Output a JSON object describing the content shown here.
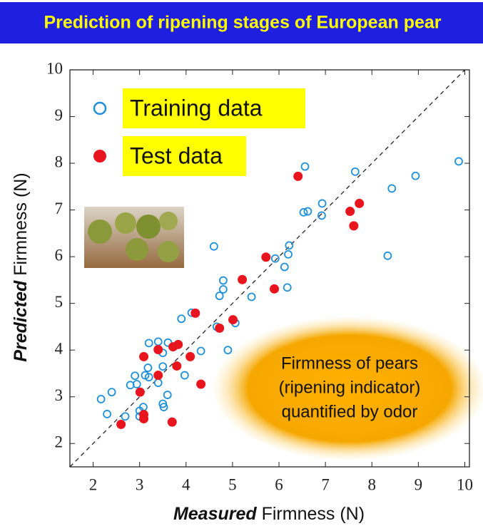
{
  "chart_data": {
    "type": "scatter",
    "title": "Prediction of ripening stages of European pear",
    "x_label_emphasis": "Measured",
    "x_label": "Firmness (N)",
    "y_label_emphasis": "Predicted",
    "y_label": "Firmness (N)",
    "annotation": [
      "Firmness of pears",
      "(ripening indicator)",
      "quantified by odor"
    ],
    "xlim": [
      1.5,
      10.1
    ],
    "ylim": [
      1.5,
      10
    ],
    "xticks": [
      2,
      3,
      4,
      5,
      6,
      7,
      8,
      9,
      10
    ],
    "yticks": [
      2,
      3,
      4,
      5,
      6,
      7,
      8,
      9,
      10
    ],
    "diagonal": true,
    "series": [
      {
        "name": "Training data",
        "color": "#1e90d8",
        "filled": false,
        "x": [
          2.17,
          2.4,
          2.3,
          2.69,
          2.8,
          2.9,
          2.94,
          3.0,
          3.0,
          3.08,
          3.12,
          3.18,
          3.2,
          3.2,
          3.4,
          3.4,
          3.5,
          3.5,
          3.5,
          3.52,
          3.6,
          3.61,
          3.9,
          3.97,
          4.12,
          4.32,
          4.6,
          4.66,
          4.72,
          4.8,
          4.8,
          4.9,
          5.06,
          5.41,
          5.92,
          6.12,
          6.2,
          6.22,
          6.18,
          6.53,
          6.62,
          6.56,
          6.92,
          6.93,
          7.64,
          8.34,
          8.43,
          8.94,
          9.87
        ],
        "y": [
          2.95,
          3.1,
          2.63,
          2.58,
          3.25,
          3.45,
          3.27,
          2.7,
          2.58,
          2.78,
          3.46,
          3.62,
          4.15,
          3.42,
          4.18,
          3.3,
          3.94,
          3.65,
          2.85,
          2.78,
          3.04,
          4.16,
          4.67,
          3.46,
          4.8,
          3.98,
          6.22,
          4.5,
          5.16,
          5.3,
          5.49,
          4.0,
          4.58,
          5.14,
          5.96,
          5.78,
          6.05,
          6.24,
          5.34,
          6.95,
          6.97,
          7.93,
          6.88,
          7.14,
          7.82,
          6.02,
          7.46,
          7.73,
          8.04
        ]
      },
      {
        "name": "Test data",
        "color": "#e8141e",
        "filled": true,
        "x": [
          2.6,
          3.09,
          3.01,
          3.09,
          3.09,
          3.4,
          3.4,
          3.72,
          3.83,
          3.8,
          3.7,
          4.09,
          4.2,
          4.32,
          4.72,
          5.01,
          5.21,
          5.72,
          5.9,
          6.41,
          7.53,
          7.73,
          7.61
        ],
        "y": [
          2.41,
          3.86,
          3.1,
          2.62,
          2.53,
          4.01,
          3.46,
          4.07,
          4.12,
          3.66,
          2.46,
          3.86,
          4.79,
          3.27,
          4.47,
          4.65,
          5.51,
          5.99,
          5.31,
          7.72,
          6.97,
          7.14,
          6.66
        ]
      }
    ]
  }
}
